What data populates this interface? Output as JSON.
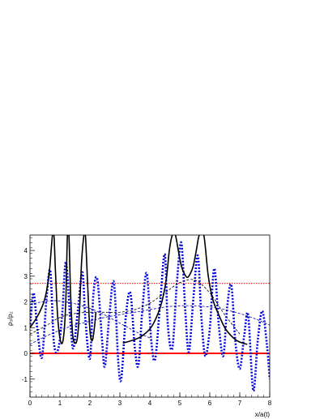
{
  "chart_data": {
    "type": "line",
    "xlabel": "x/a(t)",
    "ylabel": "ρ₃/ρ₂",
    "xlim": [
      0,
      8
    ],
    "ylim": [
      -1.7,
      4.6
    ],
    "x_ticks": [
      "0",
      "1",
      "2",
      "3",
      "4",
      "5",
      "6",
      "7",
      "8"
    ],
    "y_ticks": [
      "-1",
      "0",
      "1",
      "2",
      "3",
      "4"
    ],
    "x_tick_values": [
      0,
      1,
      2,
      3,
      4,
      5,
      6,
      7,
      8
    ],
    "y_tick_values": [
      -1,
      0,
      1,
      2,
      3,
      4
    ],
    "reference_lines": [
      {
        "y": 0,
        "style": "solid",
        "color": "#ff0000"
      },
      {
        "y": 2.72,
        "style": "dotted",
        "color": "#ff0000"
      }
    ],
    "series": [
      {
        "style": "dotted",
        "color": "#0000dd",
        "x": [
          0.0,
          0.12,
          0.25,
          0.4,
          0.55,
          0.68,
          0.8,
          0.95,
          1.08,
          1.2,
          1.35,
          1.45,
          1.6,
          1.75,
          1.85,
          2.0,
          2.12,
          2.25,
          2.4,
          2.5,
          2.65,
          2.8,
          2.95,
          3.05,
          3.2,
          3.35,
          3.5,
          3.62,
          3.75,
          3.9,
          4.05,
          4.18,
          4.35,
          4.5,
          4.6,
          4.75,
          4.9,
          5.05,
          5.18,
          5.3,
          5.45,
          5.6,
          5.72,
          5.85,
          6.0,
          6.15,
          6.3,
          6.45,
          6.58,
          6.72,
          6.85,
          7.0,
          7.15,
          7.28,
          7.45,
          7.6,
          7.75,
          7.9,
          8.0
        ],
        "y": [
          1.0,
          2.35,
          0.9,
          -0.15,
          2.1,
          3.2,
          0.4,
          0.2,
          1.6,
          3.55,
          1.2,
          0.2,
          1.7,
          3.15,
          1.3,
          -0.2,
          2.35,
          2.85,
          0.6,
          -0.5,
          1.5,
          2.75,
          -0.4,
          -0.95,
          1.45,
          2.35,
          0.2,
          -0.45,
          1.7,
          3.1,
          0.45,
          -0.2,
          2.05,
          3.85,
          1.1,
          0.2,
          2.7,
          4.3,
          1.7,
          0.05,
          2.1,
          3.8,
          1.4,
          -0.1,
          0.95,
          3.3,
          1.1,
          -0.1,
          1.8,
          2.65,
          0.5,
          -0.6,
          0.7,
          1.5,
          -1.45,
          0.5,
          1.65,
          0.4,
          -1.0
        ]
      },
      {
        "style": "solid",
        "color": "#000000",
        "x": [
          0.0,
          0.15,
          0.3,
          0.45,
          0.55,
          0.65,
          0.75,
          0.8,
          0.85,
          0.92,
          1.0,
          1.08,
          1.15,
          1.2,
          1.25,
          1.3,
          1.35,
          1.42,
          1.5,
          1.58,
          1.65,
          1.72,
          1.8,
          1.85,
          1.92,
          2.0,
          2.08,
          2.15,
          2.2
        ],
        "y": [
          1.0,
          1.25,
          1.55,
          1.95,
          2.4,
          3.2,
          4.6,
          4.6,
          3.2,
          1.5,
          0.6,
          0.4,
          1.0,
          2.2,
          4.6,
          4.6,
          2.5,
          0.8,
          0.4,
          0.6,
          1.6,
          3.5,
          4.6,
          4.6,
          2.8,
          0.9,
          0.5,
          1.0,
          1.6
        ]
      },
      {
        "style": "solid",
        "color": "#000000",
        "x": [
          3.1,
          3.4,
          3.7,
          4.0,
          4.2,
          4.4,
          4.55,
          4.65,
          4.75,
          4.85,
          4.95,
          5.05,
          5.15,
          5.25,
          5.35,
          5.45,
          5.55,
          5.65,
          5.8,
          5.95,
          6.1,
          6.3,
          6.5,
          6.7,
          6.9,
          7.1,
          7.25
        ],
        "y": [
          0.4,
          0.5,
          0.65,
          0.95,
          1.35,
          2.0,
          2.9,
          4.0,
          4.6,
          4.6,
          4.0,
          3.4,
          3.1,
          2.95,
          3.1,
          3.4,
          4.0,
          4.6,
          4.6,
          3.0,
          2.1,
          1.5,
          1.0,
          0.7,
          0.5,
          0.4,
          0.35
        ]
      },
      {
        "style": "dashed",
        "color": "#000000",
        "x": [
          0.0,
          0.5,
          1.0,
          1.5,
          2.0,
          2.5,
          3.0,
          3.5,
          4.0,
          4.5,
          5.0,
          5.5,
          6.0,
          6.5,
          7.0
        ],
        "y": [
          0.75,
          1.05,
          1.4,
          1.55,
          1.6,
          1.6,
          1.6,
          1.7,
          1.95,
          2.35,
          2.75,
          2.85,
          2.35,
          1.5,
          0.75
        ]
      },
      {
        "style": "dashed",
        "color": "#0000aa",
        "x": [
          0.0,
          0.5,
          1.0,
          1.5,
          2.0,
          2.5,
          3.0,
          3.5,
          4.0,
          4.5,
          5.0,
          5.5,
          6.0,
          6.5,
          7.0,
          7.5,
          8.0
        ],
        "y": [
          0.35,
          0.65,
          0.9,
          1.1,
          1.25,
          1.4,
          1.5,
          1.6,
          1.7,
          1.8,
          1.85,
          1.85,
          1.8,
          1.7,
          1.55,
          1.35,
          1.1
        ]
      },
      {
        "style": "dashed",
        "color": "#0000aa",
        "x": [
          0.0,
          0.4,
          0.8,
          1.2,
          1.6,
          2.0,
          2.4,
          2.8,
          3.2,
          3.6,
          4.0
        ],
        "y": [
          1.9,
          2.0,
          2.05,
          2.0,
          1.9,
          1.75,
          1.55,
          1.3,
          1.05,
          0.8,
          0.6
        ]
      }
    ]
  }
}
